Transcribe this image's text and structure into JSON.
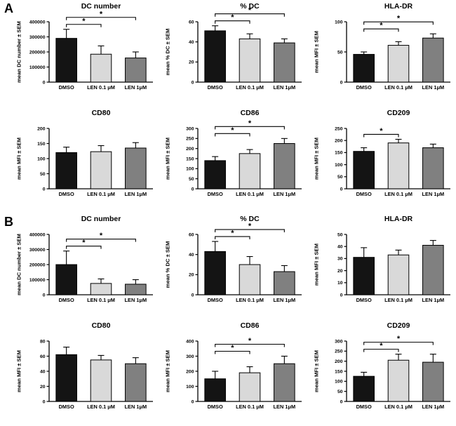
{
  "figure": {
    "panels": [
      {
        "label": "A"
      },
      {
        "label": "B"
      }
    ]
  },
  "chart_data": [
    {
      "type": "bar",
      "panel": "A",
      "title": "DC number",
      "ylabel": "mean DC number ± SEM",
      "categories": [
        "DMSO",
        "LEN 0.1 μM",
        "LEN 1μM"
      ],
      "values": [
        290000,
        185000,
        160000
      ],
      "errors": [
        60000,
        55000,
        40000
      ],
      "ylim": [
        0,
        400000
      ],
      "yticks": [
        0,
        100000,
        200000,
        300000,
        400000
      ],
      "bar_colors": [
        "#141414",
        "#d9d9d9",
        "#808080"
      ],
      "significance": [
        {
          "from": 0,
          "to": 1,
          "label": "*"
        },
        {
          "from": 0,
          "to": 2,
          "label": "*"
        }
      ]
    },
    {
      "type": "bar",
      "panel": "A",
      "title": "% DC",
      "ylabel": "mean % DC ± SEM",
      "categories": [
        "DMSO",
        "LEN 0.1 μM",
        "LEN 1μM"
      ],
      "values": [
        51,
        43,
        39
      ],
      "errors": [
        5,
        5,
        4
      ],
      "ylim": [
        0,
        60
      ],
      "yticks": [
        0,
        20,
        40,
        60
      ],
      "bar_colors": [
        "#141414",
        "#d9d9d9",
        "#808080"
      ],
      "significance": [
        {
          "from": 0,
          "to": 1,
          "label": "*"
        },
        {
          "from": 0,
          "to": 2,
          "label": "*"
        }
      ]
    },
    {
      "type": "bar",
      "panel": "A",
      "title": "HLA-DR",
      "ylabel": "mean MFI ± SEM",
      "categories": [
        "DMSO",
        "LEN 0.1 μM",
        "LEN 1μM"
      ],
      "values": [
        46,
        61,
        73
      ],
      "errors": [
        4,
        6,
        7
      ],
      "ylim": [
        0,
        100
      ],
      "yticks": [
        0,
        50,
        100
      ],
      "bar_colors": [
        "#141414",
        "#d9d9d9",
        "#808080"
      ],
      "significance": [
        {
          "from": 0,
          "to": 1,
          "label": "*"
        },
        {
          "from": 0,
          "to": 2,
          "label": "*"
        }
      ]
    },
    {
      "type": "bar",
      "panel": "A",
      "title": "CD80",
      "ylabel": "mean MFI ± SEM",
      "categories": [
        "DMSO",
        "LEN 0.1 μM",
        "LEN 1μM"
      ],
      "values": [
        120,
        123,
        135
      ],
      "errors": [
        18,
        20,
        18
      ],
      "ylim": [
        0,
        200
      ],
      "yticks": [
        0,
        50,
        100,
        150,
        200
      ],
      "bar_colors": [
        "#141414",
        "#d9d9d9",
        "#808080"
      ],
      "significance": []
    },
    {
      "type": "bar",
      "panel": "A",
      "title": "CD86",
      "ylabel": "mean MFI ± SEM",
      "categories": [
        "DMSO",
        "LEN 0.1 μM",
        "LEN 1μM"
      ],
      "values": [
        140,
        175,
        225
      ],
      "errors": [
        20,
        20,
        25
      ],
      "ylim": [
        0,
        300
      ],
      "yticks": [
        0,
        50,
        100,
        150,
        200,
        250,
        300
      ],
      "bar_colors": [
        "#141414",
        "#d9d9d9",
        "#808080"
      ],
      "significance": [
        {
          "from": 0,
          "to": 1,
          "label": "*"
        },
        {
          "from": 0,
          "to": 2,
          "label": "*"
        }
      ]
    },
    {
      "type": "bar",
      "panel": "A",
      "title": "CD209",
      "ylabel": "mean MFI ± SEM",
      "categories": [
        "DMSO",
        "LEN 0.1 μM",
        "LEN 1μM"
      ],
      "values": [
        155,
        190,
        170
      ],
      "errors": [
        15,
        15,
        15
      ],
      "ylim": [
        0,
        250
      ],
      "yticks": [
        0,
        50,
        100,
        150,
        200,
        250
      ],
      "bar_colors": [
        "#141414",
        "#d9d9d9",
        "#808080"
      ],
      "significance": [
        {
          "from": 0,
          "to": 1,
          "label": "*"
        }
      ]
    },
    {
      "type": "bar",
      "panel": "B",
      "title": "DC number",
      "ylabel": "mean DC number ± SEM",
      "categories": [
        "DMSO",
        "LEN 0.1 μM",
        "LEN 1μM"
      ],
      "values": [
        200000,
        75000,
        70000
      ],
      "errors": [
        90000,
        30000,
        30000
      ],
      "ylim": [
        0,
        400000
      ],
      "yticks": [
        0,
        100000,
        200000,
        300000,
        400000
      ],
      "bar_colors": [
        "#141414",
        "#d9d9d9",
        "#808080"
      ],
      "significance": [
        {
          "from": 0,
          "to": 1,
          "label": "*"
        },
        {
          "from": 0,
          "to": 2,
          "label": "*"
        }
      ]
    },
    {
      "type": "bar",
      "panel": "B",
      "title": "% DC",
      "ylabel": "mean % DC ± SEM",
      "categories": [
        "DMSO",
        "LEN 0.1 μM",
        "LEN 1μM"
      ],
      "values": [
        43,
        30,
        23
      ],
      "errors": [
        10,
        8,
        6
      ],
      "ylim": [
        0,
        60
      ],
      "yticks": [
        0,
        20,
        40,
        60
      ],
      "bar_colors": [
        "#141414",
        "#d9d9d9",
        "#808080"
      ],
      "significance": [
        {
          "from": 0,
          "to": 1,
          "label": "*"
        },
        {
          "from": 0,
          "to": 2,
          "label": "*"
        }
      ]
    },
    {
      "type": "bar",
      "panel": "B",
      "title": "HLA-DR",
      "ylabel": "mean MFI ± SEM",
      "categories": [
        "DMSO",
        "LEN 0.1 μM",
        "LEN 1μM"
      ],
      "values": [
        31,
        33,
        41
      ],
      "errors": [
        8,
        4,
        4
      ],
      "ylim": [
        0,
        50
      ],
      "yticks": [
        0,
        10,
        20,
        30,
        40,
        50
      ],
      "bar_colors": [
        "#141414",
        "#d9d9d9",
        "#808080"
      ],
      "significance": []
    },
    {
      "type": "bar",
      "panel": "B",
      "title": "CD80",
      "ylabel": "mean MFI ± SEM",
      "categories": [
        "DMSO",
        "LEN 0.1 μM",
        "LEN 1μM"
      ],
      "values": [
        62,
        55,
        50
      ],
      "errors": [
        10,
        6,
        8
      ],
      "ylim": [
        0,
        80
      ],
      "yticks": [
        0,
        20,
        40,
        60,
        80
      ],
      "bar_colors": [
        "#141414",
        "#d9d9d9",
        "#808080"
      ],
      "significance": []
    },
    {
      "type": "bar",
      "panel": "B",
      "title": "CD86",
      "ylabel": "mean MFI ± SEM",
      "categories": [
        "DMSO",
        "LEN 0.1 μM",
        "LEN 1μM"
      ],
      "values": [
        150,
        190,
        250
      ],
      "errors": [
        50,
        40,
        50
      ],
      "ylim": [
        0,
        400
      ],
      "yticks": [
        0,
        100,
        200,
        300,
        400
      ],
      "bar_colors": [
        "#141414",
        "#d9d9d9",
        "#808080"
      ],
      "significance": [
        {
          "from": 0,
          "to": 1,
          "label": "*"
        },
        {
          "from": 0,
          "to": 2,
          "label": "*"
        }
      ]
    },
    {
      "type": "bar",
      "panel": "B",
      "title": "CD209",
      "ylabel": "mean MFI ± SEM",
      "categories": [
        "DMSO",
        "LEN 0.1 μM",
        "LEN 1μM"
      ],
      "values": [
        125,
        205,
        195
      ],
      "errors": [
        20,
        30,
        40
      ],
      "ylim": [
        0,
        300
      ],
      "yticks": [
        0,
        50,
        100,
        150,
        200,
        250,
        300
      ],
      "bar_colors": [
        "#141414",
        "#d9d9d9",
        "#808080"
      ],
      "significance": [
        {
          "from": 0,
          "to": 1,
          "label": "*"
        },
        {
          "from": 0,
          "to": 2,
          "label": "*"
        }
      ]
    }
  ]
}
